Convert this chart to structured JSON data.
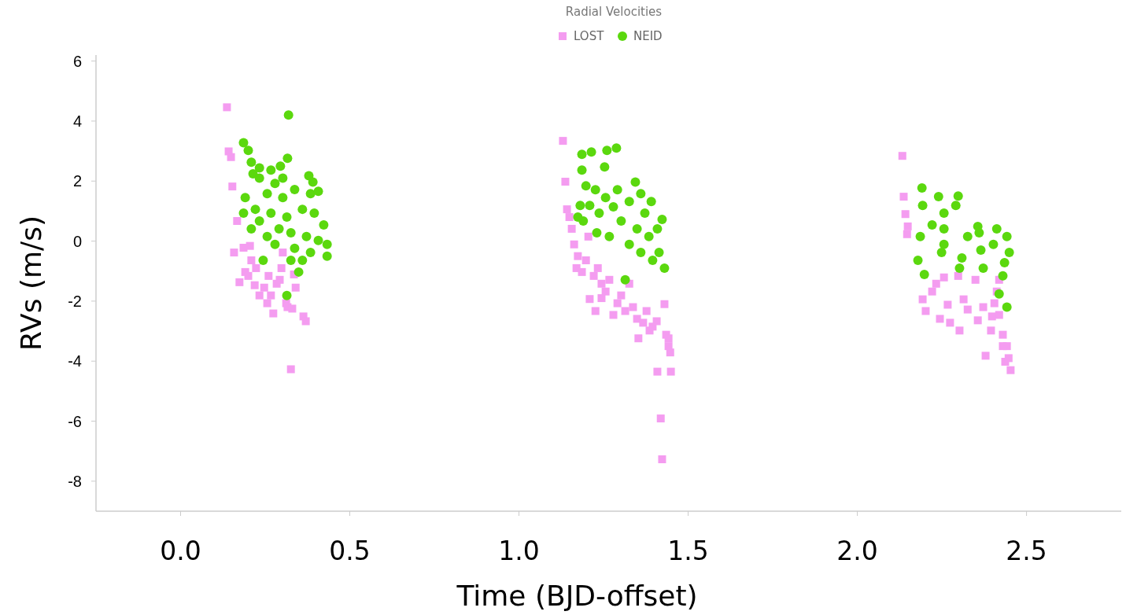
{
  "chart_data": {
    "type": "scatter",
    "title": "Radial Velocities",
    "xlabel": "Time (BJD-offset)",
    "ylabel": "RVs (m/s)",
    "xlim": [
      -0.25,
      2.78
    ],
    "ylim": [
      -9,
      6.2
    ],
    "xticks": [
      {
        "value": 0,
        "label": "0.0"
      },
      {
        "value": 0.5,
        "label": "0.5"
      },
      {
        "value": 1,
        "label": "1.0"
      },
      {
        "value": 1.5,
        "label": "1.5"
      },
      {
        "value": 2,
        "label": "2.0"
      },
      {
        "value": 2.5,
        "label": "2.5"
      }
    ],
    "yticks": [
      -8,
      -6,
      -4,
      -2,
      0,
      2,
      4,
      6
    ],
    "grid": false,
    "legend": "top",
    "series": [
      {
        "name": "LOST",
        "color": "#f49cf0",
        "marker": "square",
        "x": [
          0.137,
          0.142,
          0.149,
          0.153,
          0.167,
          0.158,
          0.174,
          0.186,
          0.205,
          0.191,
          0.209,
          0.219,
          0.233,
          0.247,
          0.256,
          0.274,
          0.267,
          0.284,
          0.293,
          0.302,
          0.298,
          0.312,
          0.316,
          0.326,
          0.33,
          0.34,
          0.335,
          0.363,
          0.37,
          0.223,
          0.2,
          0.26,
          1.13,
          1.137,
          1.142,
          1.149,
          1.156,
          1.163,
          1.174,
          1.17,
          1.186,
          1.198,
          1.205,
          1.209,
          1.221,
          1.233,
          1.244,
          1.256,
          1.267,
          1.279,
          1.291,
          1.302,
          1.314,
          1.326,
          1.337,
          1.349,
          1.353,
          1.367,
          1.377,
          1.386,
          1.395,
          1.407,
          1.409,
          1.419,
          1.423,
          1.43,
          1.435,
          1.442,
          1.447,
          1.449,
          1.442,
          1.226,
          1.244,
          2.133,
          2.137,
          2.142,
          2.149,
          2.147,
          2.202,
          2.193,
          2.233,
          2.256,
          2.267,
          2.274,
          2.302,
          2.298,
          2.349,
          2.326,
          2.356,
          2.379,
          2.395,
          2.412,
          2.419,
          2.43,
          2.437,
          2.453,
          2.447,
          2.442,
          2.43,
          2.398,
          2.372,
          2.314,
          2.244,
          2.221,
          2.405,
          2.419
        ],
        "values": [
          4.46,
          2.99,
          2.8,
          1.82,
          0.67,
          -0.38,
          -1.37,
          -0.22,
          -0.16,
          -1.03,
          -0.64,
          -1.47,
          -1.81,
          -1.55,
          -2.07,
          -2.41,
          -1.81,
          -1.42,
          -1.29,
          -0.38,
          -0.9,
          -2.07,
          -2.2,
          -4.27,
          -2.25,
          -1.55,
          -1.11,
          -2.51,
          -2.67,
          -0.9,
          -1.16,
          -1.16,
          3.34,
          1.98,
          1.06,
          0.8,
          0.41,
          -0.11,
          -0.5,
          -0.9,
          -1.03,
          -0.64,
          0.15,
          -1.93,
          -1.16,
          -0.9,
          -1.42,
          -1.68,
          -1.29,
          -2.46,
          -2.07,
          -1.81,
          -2.33,
          -1.42,
          -2.2,
          -2.59,
          -3.24,
          -2.72,
          -2.33,
          -2.98,
          -2.85,
          -2.67,
          -4.35,
          -5.91,
          -7.27,
          -2.1,
          -3.12,
          -3.24,
          -3.71,
          -4.35,
          -3.5,
          -2.33,
          -1.9,
          2.84,
          1.48,
          0.9,
          0.49,
          0.23,
          -2.33,
          -1.94,
          -1.42,
          -1.21,
          -2.12,
          -2.72,
          -2.98,
          -1.16,
          -1.29,
          -2.28,
          -2.64,
          -3.82,
          -2.98,
          -1.68,
          -2.46,
          -3.5,
          -4.02,
          -4.3,
          -3.9,
          -3.5,
          -3.12,
          -2.51,
          -2.2,
          -1.94,
          -2.59,
          -1.68,
          -2.07,
          -1.29
        ]
      },
      {
        "name": "NEID",
        "color": "#5bd80e",
        "marker": "circle",
        "x": [
          0.319,
          0.186,
          0.2,
          0.209,
          0.214,
          0.233,
          0.279,
          0.295,
          0.316,
          0.379,
          0.191,
          0.221,
          0.256,
          0.302,
          0.337,
          0.384,
          0.407,
          0.186,
          0.233,
          0.267,
          0.314,
          0.36,
          0.395,
          0.423,
          0.209,
          0.256,
          0.291,
          0.326,
          0.372,
          0.407,
          0.433,
          0.433,
          0.279,
          0.337,
          0.384,
          0.326,
          0.349,
          0.36,
          0.314,
          0.244,
          0.233,
          0.267,
          0.391,
          0.302,
          1.186,
          1.214,
          1.26,
          1.288,
          1.253,
          1.186,
          1.198,
          1.181,
          1.19,
          1.226,
          1.256,
          1.237,
          1.279,
          1.302,
          1.326,
          1.344,
          1.36,
          1.372,
          1.349,
          1.384,
          1.409,
          1.423,
          1.414,
          1.43,
          1.395,
          1.36,
          1.326,
          1.267,
          1.23,
          1.314,
          1.209,
          1.174,
          1.291,
          1.391,
          2.191,
          2.24,
          2.193,
          2.291,
          2.356,
          2.412,
          2.186,
          2.256,
          2.179,
          2.198,
          2.249,
          2.309,
          2.365,
          2.402,
          2.435,
          2.419,
          2.298,
          2.442,
          2.449,
          2.442,
          2.256,
          2.326,
          2.372,
          2.302,
          2.256,
          2.221,
          2.36,
          2.43
        ],
        "values": [
          4.2,
          3.28,
          3.02,
          2.63,
          2.24,
          2.44,
          1.92,
          2.5,
          2.76,
          2.18,
          1.45,
          1.06,
          1.58,
          1.45,
          1.72,
          1.58,
          1.66,
          0.93,
          0.67,
          0.93,
          0.8,
          1.06,
          0.93,
          0.54,
          0.41,
          0.15,
          0.41,
          0.28,
          0.15,
          0.02,
          -0.11,
          -0.5,
          -0.11,
          -0.24,
          -0.38,
          -0.64,
          -1.03,
          -0.64,
          -1.81,
          -0.64,
          2.1,
          2.37,
          1.97,
          2.1,
          2.89,
          2.97,
          3.02,
          3.1,
          2.47,
          2.37,
          1.84,
          1.19,
          0.67,
          1.71,
          1.45,
          0.93,
          1.14,
          0.67,
          1.32,
          1.97,
          1.58,
          0.93,
          0.41,
          0.15,
          0.41,
          0.72,
          -0.38,
          -0.9,
          -0.64,
          -0.38,
          -0.11,
          0.15,
          0.28,
          -1.29,
          1.19,
          0.8,
          1.71,
          1.32,
          1.77,
          1.48,
          1.19,
          1.19,
          0.49,
          0.41,
          0.15,
          0.41,
          -0.64,
          -1.11,
          -0.38,
          -0.56,
          -0.3,
          -0.11,
          -0.72,
          -1.76,
          1.5,
          0.15,
          -0.38,
          -2.2,
          0.93,
          0.15,
          -0.9,
          -0.9,
          -0.11,
          0.54,
          0.28,
          -1.16
        ]
      }
    ]
  }
}
